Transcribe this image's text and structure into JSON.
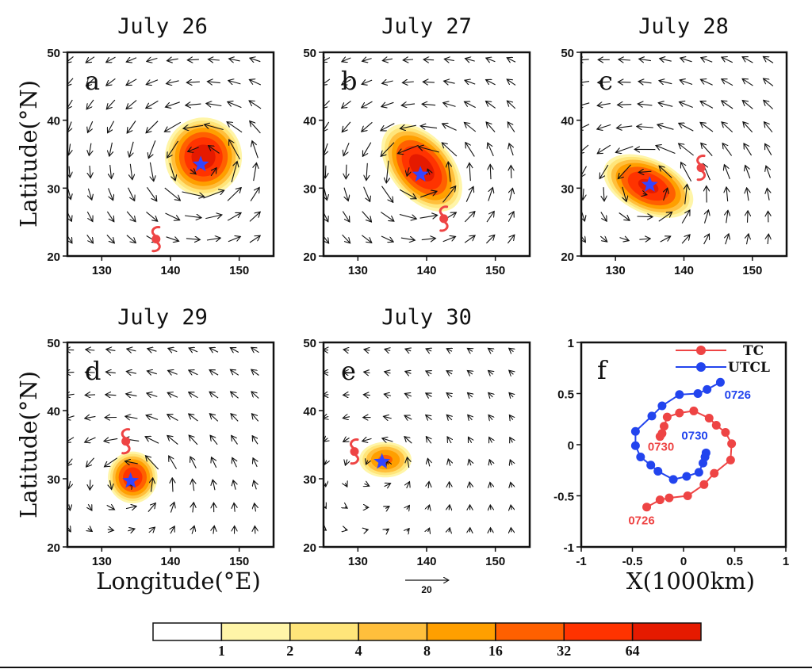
{
  "chart_data": [
    {
      "type": "heatmap",
      "panel": "a",
      "title": "July 26",
      "xlabel": "",
      "ylabel": "Latitude(°N)",
      "xlim": [
        125,
        155
      ],
      "ylim": [
        20,
        50
      ],
      "xticks": [
        "130",
        "140",
        "150"
      ],
      "yticks": [
        "20",
        "30",
        "40",
        "50"
      ],
      "utcl_center": {
        "lon": 144.4,
        "lat": 33.5
      },
      "tc_center": {
        "lon": 137.9,
        "lat": 22.5
      },
      "shading": {
        "lon": 144.8,
        "lat": 34.6,
        "rx": 5.6,
        "ry": 5.8,
        "rot": 0,
        "peak": 100
      },
      "wind": {
        "vortex_lon": 144.4,
        "vortex_lat": 33.5,
        "vmax": 22,
        "rmax": 4.5,
        "bg_u": 0,
        "bg_v": 0
      }
    },
    {
      "type": "heatmap",
      "panel": "b",
      "title": "July 27",
      "xlabel": "",
      "ylabel": "",
      "xlim": [
        125,
        155
      ],
      "ylim": [
        20,
        50
      ],
      "xticks": [
        "130",
        "140",
        "150"
      ],
      "yticks": [
        "20",
        "30",
        "40",
        "50"
      ],
      "utcl_center": {
        "lon": 139.1,
        "lat": 32.0
      },
      "tc_center": {
        "lon": 142.5,
        "lat": 25.5
      },
      "shading": {
        "lon": 139.3,
        "lat": 33.0,
        "rx": 4.5,
        "ry": 7.5,
        "rot": 40,
        "peak": 100
      },
      "wind": {
        "vortex_lon": 139.1,
        "vortex_lat": 32.0,
        "vmax": 22,
        "rmax": 4.0,
        "bg_u": 0,
        "bg_v": 0
      }
    },
    {
      "type": "heatmap",
      "panel": "c",
      "title": "July 28",
      "xlabel": "",
      "ylabel": "",
      "xlim": [
        125,
        155
      ],
      "ylim": [
        20,
        50
      ],
      "xticks": [
        "130",
        "140",
        "150"
      ],
      "yticks": [
        "20",
        "30",
        "40",
        "50"
      ],
      "utcl_center": {
        "lon": 135.0,
        "lat": 30.5
      },
      "tc_center": {
        "lon": 142.5,
        "lat": 33.0
      },
      "shading": {
        "lon": 134.8,
        "lat": 30.3,
        "rx": 7.0,
        "ry": 4.0,
        "rot": -25,
        "peak": 80
      },
      "wind": {
        "vortex_lon": 135.0,
        "vortex_lat": 30.5,
        "vmax": 20,
        "rmax": 4.0,
        "bg_u": -3,
        "bg_v": 2
      }
    },
    {
      "type": "heatmap",
      "panel": "d",
      "title": "July 29",
      "xlabel": "Longitude(°E)",
      "ylabel": "Latitude(°N)",
      "xlim": [
        125,
        155
      ],
      "ylim": [
        20,
        50
      ],
      "xticks": [
        "130",
        "140",
        "150"
      ],
      "yticks": [
        "20",
        "30",
        "40",
        "50"
      ],
      "utcl_center": {
        "lon": 134.2,
        "lat": 29.7
      },
      "tc_center": {
        "lon": 133.5,
        "lat": 35.5
      },
      "shading": {
        "lon": 134.5,
        "lat": 30.2,
        "rx": 3.6,
        "ry": 3.8,
        "rot": 0,
        "peak": 60
      },
      "wind": {
        "vortex_lon": 134.2,
        "vortex_lat": 30.2,
        "vmax": 15,
        "rmax": 3.5,
        "bg_u": -3,
        "bg_v": 2
      }
    },
    {
      "type": "heatmap",
      "panel": "e",
      "title": "July 30",
      "xlabel": "",
      "ylabel": "",
      "xlim": [
        125,
        155
      ],
      "ylim": [
        20,
        50
      ],
      "xticks": [
        "130",
        "140",
        "150"
      ],
      "yticks": [
        "20",
        "30",
        "40",
        "50"
      ],
      "utcl_center": {
        "lon": 133.5,
        "lat": 32.5
      },
      "tc_center": {
        "lon": 129.5,
        "lat": 34.0
      },
      "shading": {
        "lon": 134.0,
        "lat": 32.8,
        "rx": 3.8,
        "ry": 2.6,
        "rot": 0,
        "peak": 20
      },
      "wind": {
        "vortex_lon": 133.5,
        "vortex_lat": 32.5,
        "vmax": 9,
        "rmax": 3.0,
        "bg_u": -2,
        "bg_v": 1.5
      }
    },
    {
      "type": "line",
      "panel": "f",
      "title": "",
      "xlabel": "X(1000km)",
      "ylabel": "",
      "xlim": [
        -1,
        1
      ],
      "ylim": [
        -1,
        1
      ],
      "xticks": [
        "-1",
        "-0.5",
        "0",
        "0.5",
        "1"
      ],
      "yticks": [
        "-1",
        "-0.5",
        "0",
        "0.5",
        "1"
      ],
      "legend_position": "top-right",
      "series": [
        {
          "name": "TC",
          "color": "#ee4444",
          "start_label": "0726",
          "end_label": "0730",
          "x": [
            -0.36,
            -0.23,
            -0.14,
            0.04,
            0.2,
            0.3,
            0.46,
            0.47,
            0.41,
            0.32,
            0.25,
            0.1,
            -0.04,
            -0.16,
            -0.19,
            -0.21,
            -0.23
          ],
          "y": [
            -0.61,
            -0.54,
            -0.52,
            -0.5,
            -0.39,
            -0.28,
            -0.15,
            0.01,
            0.12,
            0.19,
            0.26,
            0.33,
            0.31,
            0.27,
            0.18,
            0.11,
            0.08
          ]
        },
        {
          "name": "UTCL",
          "color": "#2244ee",
          "start_label": "0726",
          "end_label": "0730",
          "x": [
            0.36,
            0.23,
            0.14,
            -0.04,
            -0.21,
            -0.31,
            -0.47,
            -0.47,
            -0.42,
            -0.32,
            -0.25,
            -0.1,
            0.03,
            0.15,
            0.19,
            0.21,
            0.22
          ],
          "y": [
            0.61,
            0.54,
            0.5,
            0.49,
            0.38,
            0.28,
            0.13,
            -0.01,
            -0.12,
            -0.2,
            -0.26,
            -0.34,
            -0.31,
            -0.27,
            -0.18,
            -0.12,
            -0.08
          ]
        }
      ]
    }
  ],
  "panel_letters": [
    "a",
    "b",
    "c",
    "d",
    "e",
    "f"
  ],
  "colorbar": {
    "levels": [
      "1",
      "2",
      "4",
      "8",
      "16",
      "32",
      "64"
    ],
    "colors": [
      "#ffffff",
      "#fff5a8",
      "#ffe57a",
      "#ffbf3c",
      "#ff9f00",
      "#ff6000",
      "#ff3300",
      "#e51a00"
    ]
  },
  "reference_vector": {
    "value": "20",
    "label": "20"
  },
  "markers": {
    "utcl_star_color": "#3344ff",
    "tc_symbol_color": "#ee4444"
  }
}
